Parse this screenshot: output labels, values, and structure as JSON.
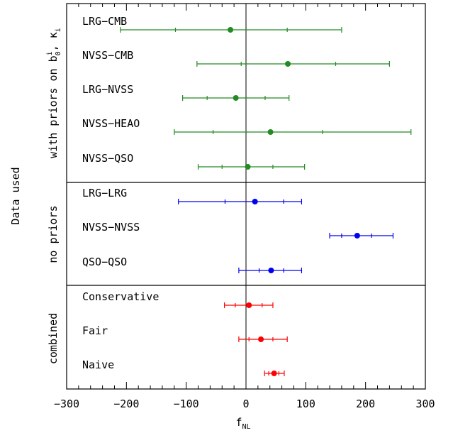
{
  "chart_data": {
    "type": "scatter",
    "subtype": "forest-plot-errorbars",
    "xlabel": "f",
    "xlabel_subscript": "NL",
    "ylabel": "Data used",
    "xlim": [
      -300,
      300
    ],
    "xticks": [
      -300,
      -200,
      -100,
      0,
      100,
      200,
      300
    ],
    "xtick_labels": [
      "−300",
      "−200",
      "−100",
      "0",
      "100",
      "200",
      "300"
    ],
    "vertical_line_at": 0,
    "groups": [
      {
        "label": "with priors on b",
        "label_superscript": "i",
        "label_subscript": "0",
        "label_suffix": ", κ",
        "label_suffix_subscript": "i",
        "color": "#228B22",
        "rows": [
          {
            "label": "LRG−CMB",
            "value": -26,
            "inner": [
              -118,
              69
            ],
            "outer": [
              -210,
              160
            ]
          },
          {
            "label": "NVSS−CMB",
            "value": 70,
            "inner": [
              -8,
              150
            ],
            "outer": [
              -82,
              240
            ]
          },
          {
            "label": "LRG−NVSS",
            "value": -17,
            "inner": [
              -65,
              32
            ],
            "outer": [
              -106,
              72
            ]
          },
          {
            "label": "NVSS−HEAO",
            "value": 41,
            "inner": [
              -55,
              128
            ],
            "outer": [
              -120,
              276
            ]
          },
          {
            "label": "NVSS−QSO",
            "value": 3,
            "inner": [
              -40,
              45
            ],
            "outer": [
              -80,
              98
            ]
          }
        ]
      },
      {
        "label": "no priors",
        "color": "#0000EE",
        "rows": [
          {
            "label": "LRG−LRG",
            "value": 15,
            "inner": [
              -35,
              63
            ],
            "outer": [
              -113,
              93
            ]
          },
          {
            "label": "NVSS−NVSS",
            "value": 186,
            "inner": [
              160,
              210
            ],
            "outer": [
              140,
              246
            ]
          },
          {
            "label": "QSO−QSO",
            "value": 42,
            "inner": [
              22,
              63
            ],
            "outer": [
              -12,
              93
            ]
          }
        ]
      },
      {
        "label": "combined",
        "color": "#FF0000",
        "rows": [
          {
            "label": "Conservative",
            "value": 5,
            "inner": [
              -18,
              27
            ],
            "outer": [
              -36,
              45
            ]
          },
          {
            "label": "Fair",
            "value": 25,
            "inner": [
              5,
              45
            ],
            "outer": [
              -12,
              69
            ]
          },
          {
            "label": "Naive",
            "value": 47,
            "inner": [
              38,
              55
            ],
            "outer": [
              31,
              64
            ]
          }
        ]
      }
    ]
  }
}
